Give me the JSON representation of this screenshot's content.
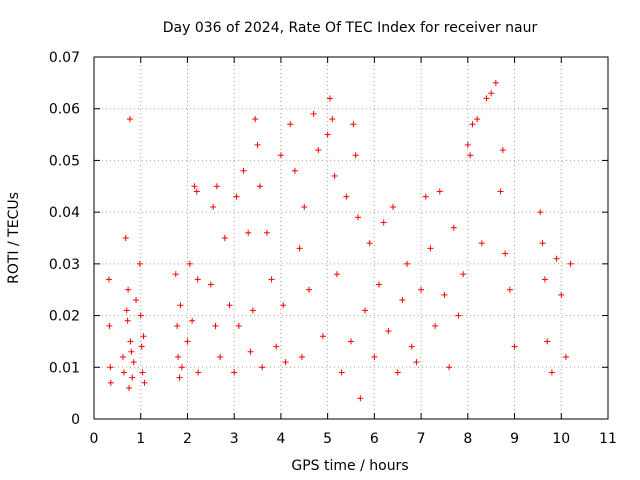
{
  "chart_data": {
    "type": "scatter",
    "title": "Day 036 of 2024, Rate Of TEC Index for receiver naur",
    "xlabel": "GPS time / hours",
    "ylabel": "ROTI / TECUs",
    "xlim": [
      0,
      11
    ],
    "ylim": [
      0,
      0.07
    ],
    "xticks": [
      0,
      1,
      2,
      3,
      4,
      5,
      6,
      7,
      8,
      9,
      10,
      11
    ],
    "yticks": [
      0,
      0.01,
      0.02,
      0.03,
      0.04,
      0.05,
      0.06,
      0.07
    ],
    "ytick_labels": [
      "0",
      "0.01",
      "0.02",
      "0.03",
      "0.04",
      "0.05",
      "0.06",
      "0.07"
    ],
    "grid": true,
    "marker": "+",
    "color": "#ff0000",
    "series": [
      {
        "name": "ROTI",
        "x": [
          0.32,
          0.33,
          0.35,
          0.36,
          0.62,
          0.64,
          0.7,
          0.73,
          0.75,
          0.78,
          0.8,
          0.82,
          0.68,
          0.72,
          0.77,
          0.85,
          0.98,
          1.0,
          1.02,
          1.04,
          1.06,
          1.08,
          0.9,
          1.75,
          1.78,
          1.8,
          1.83,
          1.85,
          1.88,
          2.0,
          2.05,
          2.1,
          2.15,
          2.2,
          2.22,
          2.23,
          2.5,
          2.55,
          2.6,
          2.63,
          2.7,
          2.8,
          2.9,
          3.0,
          3.05,
          3.1,
          3.2,
          3.3,
          3.35,
          3.4,
          3.45,
          3.5,
          3.55,
          3.6,
          3.7,
          3.8,
          3.9,
          4.0,
          4.05,
          4.1,
          4.2,
          4.3,
          4.4,
          4.45,
          4.5,
          4.6,
          4.7,
          4.8,
          4.9,
          5.0,
          5.05,
          5.1,
          5.15,
          5.2,
          5.3,
          5.4,
          5.5,
          5.55,
          5.6,
          5.65,
          5.7,
          5.8,
          5.9,
          6.0,
          6.1,
          6.2,
          6.3,
          6.4,
          6.5,
          6.6,
          6.7,
          6.8,
          6.9,
          7.0,
          7.1,
          7.2,
          7.3,
          7.4,
          7.5,
          7.6,
          7.7,
          7.8,
          7.9,
          8.0,
          8.05,
          8.1,
          8.2,
          8.3,
          8.4,
          8.5,
          8.6,
          8.7,
          8.75,
          8.8,
          8.9,
          9.0,
          9.55,
          9.6,
          9.65,
          9.7,
          9.8,
          9.9,
          10.0,
          10.1,
          10.2
        ],
        "y": [
          0.027,
          0.018,
          0.01,
          0.007,
          0.012,
          0.009,
          0.021,
          0.025,
          0.006,
          0.015,
          0.013,
          0.008,
          0.035,
          0.019,
          0.058,
          0.011,
          0.03,
          0.02,
          0.014,
          0.009,
          0.016,
          0.007,
          0.023,
          0.028,
          0.018,
          0.012,
          0.008,
          0.022,
          0.01,
          0.015,
          0.03,
          0.019,
          0.045,
          0.044,
          0.027,
          0.009,
          0.026,
          0.041,
          0.018,
          0.045,
          0.012,
          0.035,
          0.022,
          0.009,
          0.043,
          0.018,
          0.048,
          0.036,
          0.013,
          0.021,
          0.058,
          0.053,
          0.045,
          0.01,
          0.036,
          0.027,
          0.014,
          0.051,
          0.022,
          0.011,
          0.057,
          0.048,
          0.033,
          0.012,
          0.041,
          0.025,
          0.059,
          0.052,
          0.016,
          0.055,
          0.062,
          0.058,
          0.047,
          0.028,
          0.009,
          0.043,
          0.015,
          0.057,
          0.051,
          0.039,
          0.004,
          0.021,
          0.034,
          0.012,
          0.026,
          0.038,
          0.017,
          0.041,
          0.009,
          0.023,
          0.03,
          0.014,
          0.011,
          0.025,
          0.043,
          0.033,
          0.018,
          0.044,
          0.024,
          0.01,
          0.037,
          0.02,
          0.028,
          0.053,
          0.051,
          0.057,
          0.058,
          0.034,
          0.062,
          0.063,
          0.065,
          0.044,
          0.052,
          0.032,
          0.025,
          0.014,
          0.04,
          0.034,
          0.027,
          0.015,
          0.009,
          0.031,
          0.024,
          0.012,
          0.03
        ]
      }
    ]
  }
}
